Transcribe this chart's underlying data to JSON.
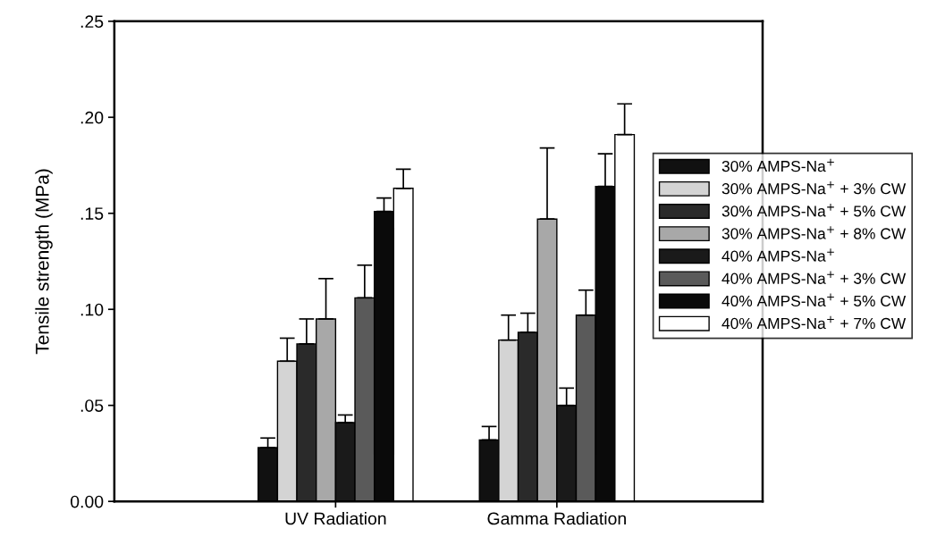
{
  "chart_data": {
    "type": "bar",
    "ylabel": "Tensile strength (MPa)",
    "categories": [
      "UV Radiation",
      "Gamma Radiation"
    ],
    "series": [
      {
        "name": "30% AMPS-Na$^{+}$",
        "color": "#111111",
        "values": [
          0.028,
          0.032
        ],
        "errors": [
          [
            0.028,
            0.033
          ],
          [
            0.032,
            0.039
          ]
        ]
      },
      {
        "name": "30% AMPS-Na$^{+}$ + 3% CW",
        "color": "#d4d4d4",
        "values": [
          0.073,
          0.084
        ],
        "errors": [
          [
            0.073,
            0.085
          ],
          [
            0.084,
            0.097
          ]
        ]
      },
      {
        "name": "30% AMPS-Na$^{+}$ + 5% CW",
        "color": "#2a2a2a",
        "values": [
          0.082,
          0.088
        ],
        "errors": [
          [
            0.082,
            0.095
          ],
          [
            0.088,
            0.098
          ]
        ]
      },
      {
        "name": "30% AMPS-Na$^{+}$ + 8% CW",
        "color": "#a8a8a8",
        "values": [
          0.095,
          0.147
        ],
        "errors": [
          [
            0.095,
            0.116
          ],
          [
            0.147,
            0.184
          ]
        ]
      },
      {
        "name": "40% AMPS-Na$^{+}$",
        "color": "#1a1a1a",
        "values": [
          0.041,
          0.05
        ],
        "errors": [
          [
            0.041,
            0.045
          ],
          [
            0.05,
            0.059
          ]
        ]
      },
      {
        "name": "40% AMPS-Na$^{+}$ + 3% CW",
        "color": "#5a5a5a",
        "values": [
          0.106,
          0.097
        ],
        "errors": [
          [
            0.106,
            0.123
          ],
          [
            0.097,
            0.11
          ]
        ]
      },
      {
        "name": "40% AMPS-Na$^{+}$ + 5% CW",
        "color": "#0a0a0a",
        "values": [
          0.151,
          0.164
        ],
        "errors": [
          [
            0.151,
            0.158
          ],
          [
            0.164,
            0.181
          ]
        ]
      },
      {
        "name": "40% AMPS-Na$^{+}$ + 7% CW",
        "color": "#ffffff",
        "values": [
          0.163,
          0.191
        ],
        "errors": [
          [
            0.163,
            0.173
          ],
          [
            0.191,
            0.207
          ]
        ]
      }
    ],
    "ylim": [
      0,
      0.25
    ],
    "yticks": [
      {
        "value": 0,
        "label": "0.00"
      },
      {
        "value": 0.05,
        "label": ".05"
      },
      {
        "value": 0.1,
        "label": ".10"
      },
      {
        "value": 0.15,
        "label": ".15"
      },
      {
        "value": 0.2,
        "label": ".20"
      },
      {
        "value": 0.25,
        "label": ".25"
      }
    ],
    "grid": false,
    "legend": "right"
  }
}
